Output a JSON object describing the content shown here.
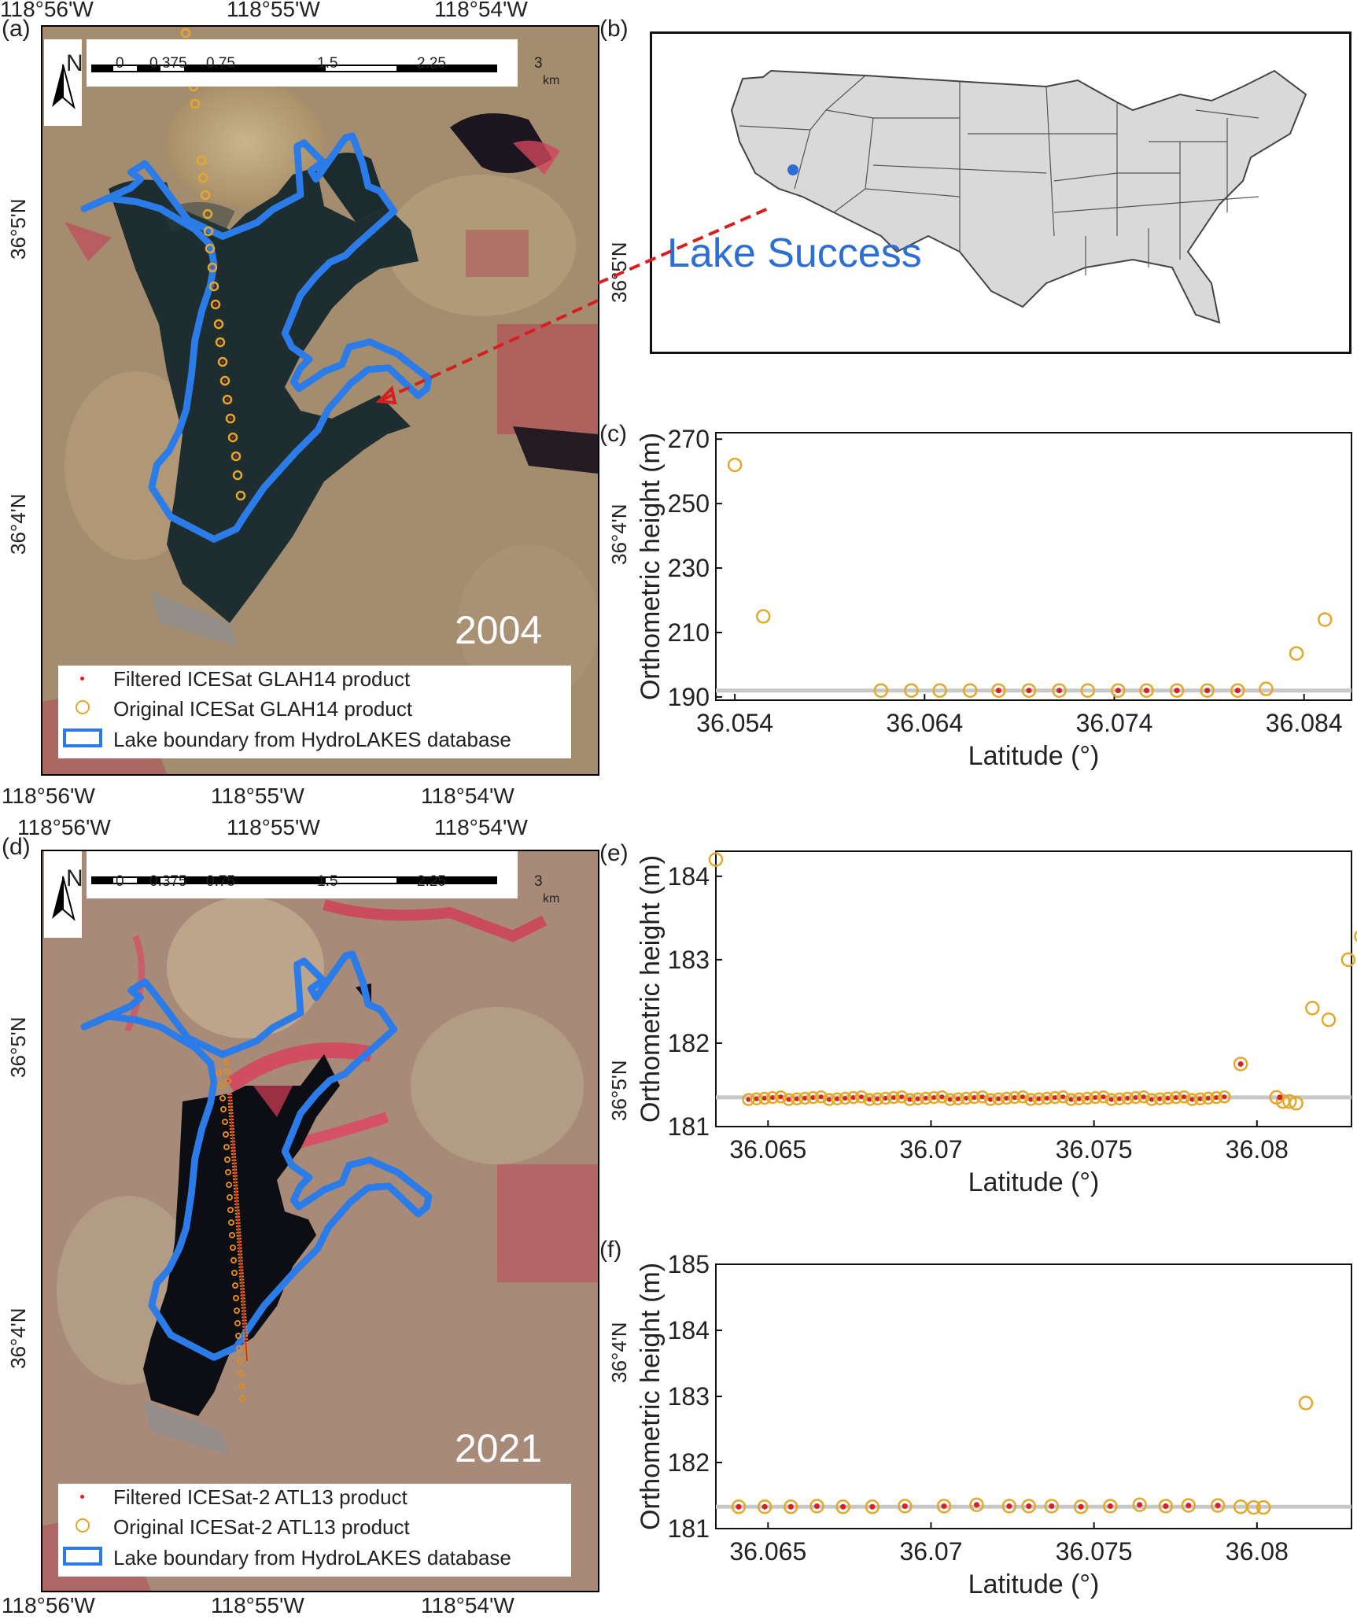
{
  "panel_labels": {
    "a": "(a)",
    "b": "(b)",
    "c": "(c)",
    "d": "(d)",
    "e": "(e)",
    "f": "(f)"
  },
  "map_top": {
    "lon_ticks_top": [
      "118°56'W",
      "118°55'W",
      "118°54'W"
    ],
    "lon_ticks_bottom": [
      "118°56'W",
      "118°55'W",
      "118°54'W"
    ],
    "lat_ticks_left": [
      "36°5'N",
      "36°4'N"
    ],
    "lat_ticks_right": [
      "36°5'N",
      "36°4'N"
    ],
    "year": "2004",
    "north": "N",
    "scale_labels": [
      "0",
      "0.375",
      "0.75",
      "1.5",
      "2.25",
      "3"
    ],
    "scale_unit": "km",
    "legend": [
      "Filtered ICESat GLAH14 product",
      "Original ICESat GLAH14 product",
      "Lake boundary from HydroLAKES database"
    ]
  },
  "map_bottom": {
    "lon_ticks_top": [
      "118°56'W",
      "118°55'W",
      "118°54'W"
    ],
    "lon_ticks_bottom": [
      "118°56'W",
      "118°55'W",
      "118°54'W"
    ],
    "lat_ticks_left": [
      "36°5'N",
      "36°4'N"
    ],
    "lat_ticks_right": [
      "36°5'N",
      "36°4'N"
    ],
    "year": "2021",
    "north": "N",
    "scale_labels": [
      "0",
      "0.375",
      "0.75",
      "1.5",
      "2.25",
      "3"
    ],
    "scale_unit": "km",
    "legend": [
      "Filtered ICESat-2 ATL13 product",
      "Original ICESat-2 ATL13 product",
      "Lake boundary from HydroLAKES database"
    ]
  },
  "inset": {
    "label": "Lake Success"
  },
  "colors": {
    "original": "#e3a82a",
    "filtered": "#d61f26",
    "lake": "#2b7ce8",
    "reference": "#c8c8c8",
    "inset_dot": "#2b6fd6",
    "arrow": "#d62020"
  },
  "chart_data": [
    {
      "type": "scatter",
      "panel": "(c)",
      "xlabel": "Latitude (°)",
      "ylabel": "Orthometric height (m)",
      "xlim": [
        36.053,
        36.0865
      ],
      "ylim": [
        189,
        272
      ],
      "xticks": [
        "36.054",
        "36.064",
        "36.074",
        "36.084"
      ],
      "yticks": [
        "190",
        "210",
        "230",
        "250",
        "270"
      ],
      "reference_y": 192,
      "series": [
        {
          "name": "Original ICESat GLAH14 product",
          "points": [
            [
              36.054,
              262
            ],
            [
              36.0555,
              215
            ],
            [
              36.0617,
              192
            ],
            [
              36.0633,
              192
            ],
            [
              36.0648,
              192
            ],
            [
              36.0664,
              192
            ],
            [
              36.0679,
              192
            ],
            [
              36.0695,
              192
            ],
            [
              36.0711,
              192
            ],
            [
              36.0726,
              192
            ],
            [
              36.0742,
              192
            ],
            [
              36.0757,
              192
            ],
            [
              36.0773,
              192
            ],
            [
              36.0789,
              192
            ],
            [
              36.0805,
              192
            ],
            [
              36.082,
              192.5
            ],
            [
              36.0836,
              203.5
            ],
            [
              36.0851,
              214
            ]
          ]
        },
        {
          "name": "Filtered ICESat GLAH14 product",
          "points": [
            [
              36.0679,
              192
            ],
            [
              36.0695,
              192
            ],
            [
              36.0711,
              192
            ],
            [
              36.0742,
              192
            ],
            [
              36.0757,
              192
            ],
            [
              36.0773,
              192
            ],
            [
              36.0789,
              192
            ],
            [
              36.0805,
              192
            ]
          ]
        }
      ]
    },
    {
      "type": "scatter",
      "panel": "(e)",
      "xlabel": "Latitude (°)",
      "ylabel": "Orthometric height (m)",
      "xlim": [
        36.0634,
        36.0829
      ],
      "ylim": [
        181,
        184.3
      ],
      "xticks": [
        "36.065",
        "36.07",
        "36.075",
        "36.08"
      ],
      "yticks": [
        "181",
        "182",
        "183",
        "184"
      ],
      "reference_y": 181.35,
      "series": [
        {
          "name": "Original ICESat-2 ATL13 product",
          "points": [
            [
              36.0634,
              184.2
            ],
            [
              36.0795,
              181.75
            ],
            [
              36.0806,
              181.35
            ],
            [
              36.0808,
              181.3
            ],
            [
              36.081,
              181.3
            ],
            [
              36.0812,
              181.28
            ],
            [
              36.0817,
              182.42
            ],
            [
              36.0822,
              182.28
            ],
            [
              36.0828,
              183.0
            ],
            [
              36.0832,
              183.28
            ]
          ]
        },
        {
          "name": "Filtered ICESat-2 ATL13 product",
          "points": [
            [
              36.0795,
              181.75
            ],
            [
              36.0807,
              181.35
            ]
          ]
        }
      ],
      "dense_segment": {
        "x_start": 36.0644,
        "x_end": 36.079,
        "y": 181.34,
        "count": 60
      }
    },
    {
      "type": "scatter",
      "panel": "(f)",
      "xlabel": "Latitude (°)",
      "ylabel": "Orthometric height (m)",
      "xlim": [
        36.0634,
        36.0829
      ],
      "ylim": [
        181,
        185
      ],
      "xticks": [
        "36.065",
        "36.07",
        "36.075",
        "36.08"
      ],
      "yticks": [
        "181",
        "182",
        "183",
        "184",
        "185"
      ],
      "reference_y": 181.33,
      "series": [
        {
          "name": "Original ICESat-2 ATL13 product",
          "points": [
            [
              36.0641,
              181.33
            ],
            [
              36.0649,
              181.33
            ],
            [
              36.0657,
              181.33
            ],
            [
              36.0665,
              181.34
            ],
            [
              36.0673,
              181.33
            ],
            [
              36.0682,
              181.33
            ],
            [
              36.0692,
              181.34
            ],
            [
              36.0704,
              181.34
            ],
            [
              36.0714,
              181.36
            ],
            [
              36.0724,
              181.34
            ],
            [
              36.073,
              181.34
            ],
            [
              36.0737,
              181.34
            ],
            [
              36.0746,
              181.33
            ],
            [
              36.0755,
              181.34
            ],
            [
              36.0764,
              181.36
            ],
            [
              36.0772,
              181.34
            ],
            [
              36.0779,
              181.35
            ],
            [
              36.0788,
              181.35
            ],
            [
              36.0795,
              181.33
            ],
            [
              36.0799,
              181.32
            ],
            [
              36.0802,
              181.32
            ],
            [
              36.0815,
              182.9
            ]
          ]
        },
        {
          "name": "Filtered ICESat-2 ATL13 product",
          "points": [
            [
              36.0641,
              181.33
            ],
            [
              36.0649,
              181.33
            ],
            [
              36.0657,
              181.33
            ],
            [
              36.0665,
              181.34
            ],
            [
              36.0673,
              181.33
            ],
            [
              36.0682,
              181.33
            ],
            [
              36.0692,
              181.34
            ],
            [
              36.0704,
              181.34
            ],
            [
              36.0714,
              181.36
            ],
            [
              36.0724,
              181.34
            ],
            [
              36.073,
              181.34
            ],
            [
              36.0737,
              181.34
            ],
            [
              36.0746,
              181.33
            ],
            [
              36.0755,
              181.34
            ],
            [
              36.0764,
              181.36
            ],
            [
              36.0772,
              181.34
            ],
            [
              36.0779,
              181.35
            ],
            [
              36.0788,
              181.35
            ]
          ]
        }
      ]
    }
  ]
}
